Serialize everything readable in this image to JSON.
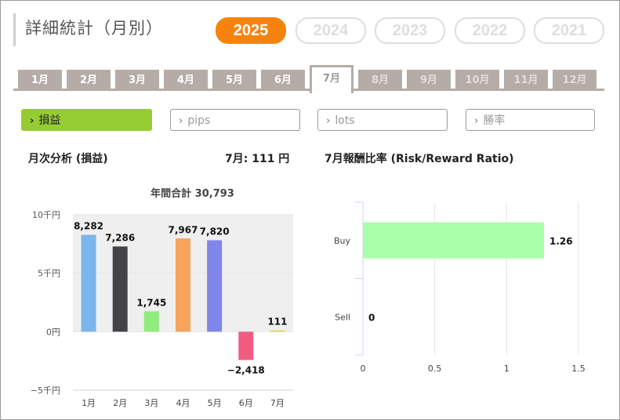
{
  "page": {
    "title": "詳細統計（月別）"
  },
  "years": [
    {
      "label": "2025",
      "active": true
    },
    {
      "label": "2024",
      "active": false
    },
    {
      "label": "2023",
      "active": false
    },
    {
      "label": "2022",
      "active": false
    },
    {
      "label": "2021",
      "active": false
    }
  ],
  "months": [
    {
      "label": "1月",
      "state": "enabled"
    },
    {
      "label": "2月",
      "state": "enabled"
    },
    {
      "label": "3月",
      "state": "enabled"
    },
    {
      "label": "4月",
      "state": "enabled"
    },
    {
      "label": "5月",
      "state": "enabled"
    },
    {
      "label": "6月",
      "state": "enabled"
    },
    {
      "label": "7月",
      "state": "active"
    },
    {
      "label": "8月",
      "state": "disabled"
    },
    {
      "label": "9月",
      "state": "disabled"
    },
    {
      "label": "10月",
      "state": "disabled"
    },
    {
      "label": "11月",
      "state": "disabled"
    },
    {
      "label": "12月",
      "state": "disabled"
    }
  ],
  "metrics": [
    {
      "label": "損益",
      "active": true
    },
    {
      "label": "pips",
      "active": false
    },
    {
      "label": "lots",
      "active": false
    },
    {
      "label": "勝率",
      "active": false
    }
  ],
  "left_panel": {
    "title": "月次分析 (損益)",
    "summary": "7月:  111 円"
  },
  "right_panel": {
    "title": "7月報酬比率 (Risk/Reward Ratio)"
  },
  "colors": {
    "accent_year": "#f7830f",
    "metric_active": "#96cc33",
    "tab_bg": "#b5aca8"
  },
  "chart_data": [
    {
      "type": "bar",
      "title": "年間合計 30,793",
      "categories": [
        "1月",
        "2月",
        "3月",
        "4月",
        "5月",
        "6月",
        "7月"
      ],
      "values": [
        8282,
        7286,
        1745,
        7967,
        7820,
        -2418,
        111
      ],
      "value_labels": [
        "8,282",
        "7,286",
        "1,745",
        "7,967",
        "7,820",
        "−2,418",
        "111"
      ],
      "colors": [
        "#7cb5ec",
        "#434348",
        "#90ed7d",
        "#f7a35c",
        "#8085e9",
        "#f15c80",
        "#e4d354"
      ],
      "y_ticks": [
        {
          "value": 10000,
          "label": "10千円"
        },
        {
          "value": 5000,
          "label": "5千円"
        },
        {
          "value": 0,
          "label": "0円"
        },
        {
          "value": -5000,
          "label": "−5千円"
        }
      ],
      "ylim": [
        -5000,
        10000
      ],
      "plot_band": {
        "from": 0,
        "to": 10000,
        "color": "#efefef"
      }
    },
    {
      "type": "bar",
      "orientation": "horizontal",
      "categories": [
        "Buy",
        "Sell"
      ],
      "values": [
        1.26,
        0
      ],
      "value_labels": [
        "1.26",
        "0"
      ],
      "color": "#aaffaa",
      "x_ticks": [
        {
          "value": 0,
          "label": "0"
        },
        {
          "value": 0.5,
          "label": "0.5"
        },
        {
          "value": 1,
          "label": "1"
        },
        {
          "value": 1.5,
          "label": "1.5"
        }
      ],
      "xlim": [
        0,
        1.5
      ]
    }
  ]
}
